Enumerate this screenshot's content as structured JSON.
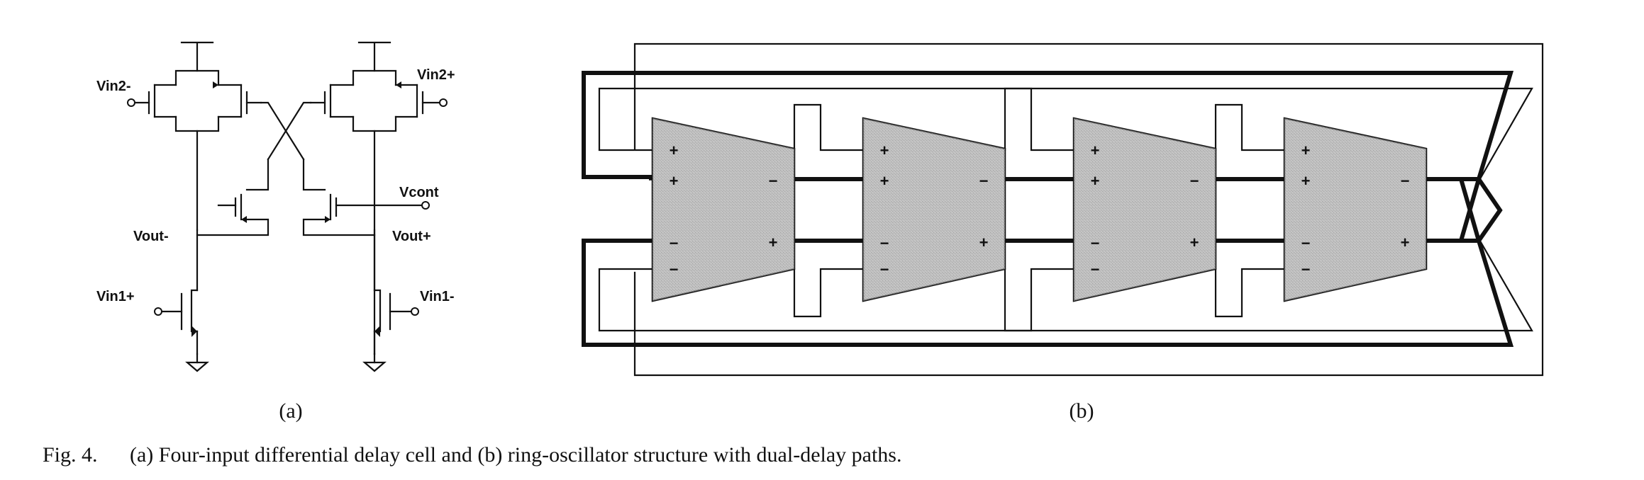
{
  "circuit_a": {
    "labels": {
      "vin2_minus": "Vin2-",
      "vin2_plus": "Vin2+",
      "vcont": "Vcont",
      "vout_minus": "Vout-",
      "vout_plus": "Vout+",
      "vin1_plus": "Vin1+",
      "vin1_minus": "Vin1-"
    },
    "sublabel": "(a)"
  },
  "ring_b": {
    "stage_count": 4,
    "stages": [
      {
        "signs": [
          "+",
          "+",
          "−",
          "−",
          "−",
          "+"
        ]
      },
      {
        "signs": [
          "+",
          "+",
          "−",
          "−",
          "−",
          "+"
        ]
      },
      {
        "signs": [
          "+",
          "+",
          "−",
          "−",
          "−",
          "+"
        ]
      },
      {
        "signs": [
          "+",
          "+",
          "−",
          "−",
          "−",
          "+"
        ]
      }
    ],
    "stage_fill": "#b9b9b9",
    "sublabel": "(b)"
  },
  "caption": {
    "prefix": "Fig. 4.",
    "text": "(a) Four-input differential delay cell and (b) ring-oscillator structure with dual-delay paths."
  }
}
